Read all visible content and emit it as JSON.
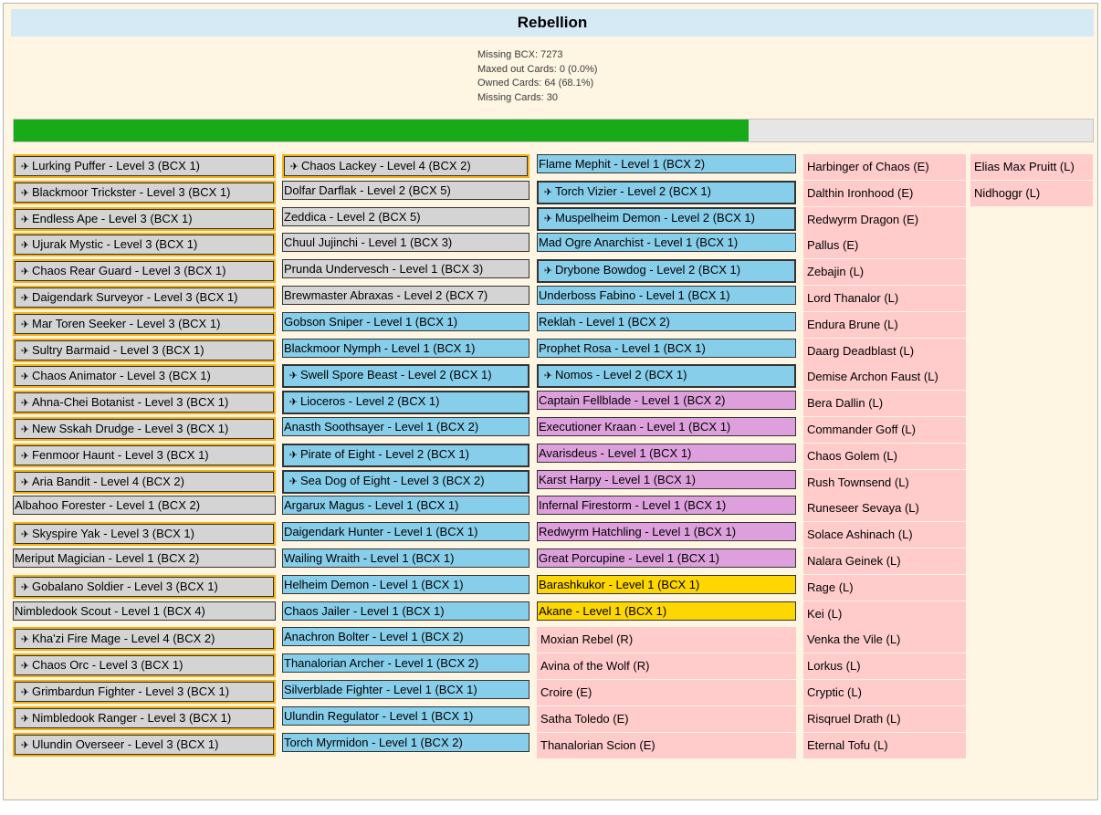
{
  "title": "Rebellion",
  "stats": [
    "Missing BCX: 7273",
    "Maxed out Cards: 0 (0.0%)",
    "Owned Cards: 64 (68.1%)",
    "Missing Cards: 30"
  ],
  "progress_fraction": 0.681,
  "icons": {
    "gold_foil": "gold-card-icon"
  },
  "colors": {
    "gray": "#d4d4d4",
    "blue": "#87ceeb",
    "violet": "#dda0dd",
    "yellow": "#ffd700",
    "pink": "#ffcbcb",
    "gold_border": "#f3b117",
    "progress": "#18aa18"
  },
  "columns": [
    [
      {
        "label": "Lurking Puffer - Level 3 (BCX 1)",
        "style": "gray",
        "gold": true
      },
      {
        "label": "Blackmoor Trickster - Level 3 (BCX 1)",
        "style": "gray",
        "gold": true
      },
      {
        "label": "Endless Ape - Level 3 (BCX 1)",
        "style": "gray",
        "gold": true
      },
      {
        "label": "Ujurak Mystic - Level 3 (BCX 1)",
        "style": "gray",
        "gold": true
      },
      {
        "label": "Chaos Rear Guard - Level 3 (BCX 1)",
        "style": "gray",
        "gold": true
      },
      {
        "label": "Daigendark Surveyor - Level 3 (BCX 1)",
        "style": "gray",
        "gold": true
      },
      {
        "label": "Mar Toren Seeker - Level 3 (BCX 1)",
        "style": "gray",
        "gold": true
      },
      {
        "label": "Sultry Barmaid - Level 3 (BCX 1)",
        "style": "gray",
        "gold": true
      },
      {
        "label": "Chaos Animator - Level 3 (BCX 1)",
        "style": "gray",
        "gold": true
      },
      {
        "label": "Ahna-Chei Botanist - Level 3 (BCX 1)",
        "style": "gray",
        "gold": true
      },
      {
        "label": "New Sskah Drudge - Level 3 (BCX 1)",
        "style": "gray",
        "gold": true
      },
      {
        "label": "Fenmoor Haunt - Level 3 (BCX 1)",
        "style": "gray",
        "gold": true
      },
      {
        "label": "Aria Bandit - Level 4 (BCX 2)",
        "style": "gray",
        "gold": true
      },
      {
        "label": "Albahoo Forester - Level 1 (BCX 2)",
        "style": "gray",
        "gold": false
      },
      {
        "label": "Skyspire Yak - Level 3 (BCX 1)",
        "style": "gray",
        "gold": true
      },
      {
        "label": "Meriput Magician - Level 1 (BCX 2)",
        "style": "gray",
        "gold": false
      },
      {
        "label": "Gobalano Soldier - Level 3 (BCX 1)",
        "style": "gray",
        "gold": true
      },
      {
        "label": "Nimbledook Scout - Level 1 (BCX 4)",
        "style": "gray",
        "gold": false
      },
      {
        "label": "Kha'zi Fire Mage - Level 4 (BCX 2)",
        "style": "gray",
        "gold": true
      },
      {
        "label": "Chaos Orc - Level 3 (BCX 1)",
        "style": "gray",
        "gold": true
      },
      {
        "label": "Grimbardun Fighter - Level 3 (BCX 1)",
        "style": "gray",
        "gold": true
      },
      {
        "label": "Nimbledook Ranger - Level 3 (BCX 1)",
        "style": "gray",
        "gold": true
      },
      {
        "label": "Ulundin Overseer - Level 3 (BCX 1)",
        "style": "gray",
        "gold": true
      }
    ],
    [
      {
        "label": "Chaos Lackey - Level 4 (BCX 2)",
        "style": "gray",
        "gold": true
      },
      {
        "label": "Dolfar Darflak - Level 2 (BCX 5)",
        "style": "gray",
        "gold": false
      },
      {
        "label": "Zeddica - Level 2 (BCX 5)",
        "style": "gray",
        "gold": false
      },
      {
        "label": "Chuul Jujinchi - Level 1 (BCX 3)",
        "style": "gray",
        "gold": false
      },
      {
        "label": "Prunda Undervesch - Level 1 (BCX 3)",
        "style": "gray",
        "gold": false
      },
      {
        "label": "Brewmaster Abraxas - Level 2 (BCX 7)",
        "style": "gray",
        "gold": false
      },
      {
        "label": "Gobson Sniper - Level 1 (BCX 1)",
        "style": "blue",
        "gold": false
      },
      {
        "label": "Blackmoor Nymph - Level 1 (BCX 1)",
        "style": "blue",
        "gold": false
      },
      {
        "label": "Swell Spore Beast - Level 2 (BCX 1)",
        "style": "blue",
        "gold": true
      },
      {
        "label": "Lioceros - Level 2 (BCX 1)",
        "style": "blue",
        "gold": true
      },
      {
        "label": "Anasth Soothsayer - Level 1 (BCX 2)",
        "style": "blue",
        "gold": false
      },
      {
        "label": "Pirate of Eight - Level 2 (BCX 1)",
        "style": "blue",
        "gold": true
      },
      {
        "label": "Sea Dog of Eight - Level 3 (BCX 2)",
        "style": "blue",
        "gold": true
      },
      {
        "label": "Argarux Magus - Level 1 (BCX 1)",
        "style": "blue",
        "gold": false
      },
      {
        "label": "Daigendark Hunter - Level 1 (BCX 1)",
        "style": "blue",
        "gold": false
      },
      {
        "label": "Wailing Wraith - Level 1 (BCX 1)",
        "style": "blue",
        "gold": false
      },
      {
        "label": "Helheim Demon - Level 1 (BCX 1)",
        "style": "blue",
        "gold": false
      },
      {
        "label": "Chaos Jailer - Level 1 (BCX 1)",
        "style": "blue",
        "gold": false
      },
      {
        "label": "Anachron Bolter - Level 1 (BCX 2)",
        "style": "blue",
        "gold": false
      },
      {
        "label": "Thanalorian Archer - Level 1 (BCX 2)",
        "style": "blue",
        "gold": false
      },
      {
        "label": "Silverblade Fighter - Level 1 (BCX 1)",
        "style": "blue",
        "gold": false
      },
      {
        "label": "Ulundin Regulator - Level 1 (BCX 1)",
        "style": "blue",
        "gold": false
      },
      {
        "label": "Torch Myrmidon - Level 1 (BCX 2)",
        "style": "blue",
        "gold": false
      }
    ],
    [
      {
        "label": "Flame Mephit - Level 1 (BCX 2)",
        "style": "blue",
        "gold": false
      },
      {
        "label": "Torch Vizier - Level 2 (BCX 1)",
        "style": "blue",
        "gold": true
      },
      {
        "label": "Muspelheim Demon - Level 2 (BCX 1)",
        "style": "blue",
        "gold": true
      },
      {
        "label": "Mad Ogre Anarchist - Level 1 (BCX 1)",
        "style": "blue",
        "gold": false
      },
      {
        "label": "Drybone Bowdog - Level 2 (BCX 1)",
        "style": "blue",
        "gold": true
      },
      {
        "label": "Underboss Fabino - Level 1 (BCX 1)",
        "style": "blue",
        "gold": false
      },
      {
        "label": "Reklah - Level 1 (BCX 2)",
        "style": "blue",
        "gold": false
      },
      {
        "label": "Prophet Rosa - Level 1 (BCX 1)",
        "style": "blue",
        "gold": false
      },
      {
        "label": "Nomos - Level 2 (BCX 1)",
        "style": "blue",
        "gold": true
      },
      {
        "label": "Captain Fellblade - Level 1 (BCX 2)",
        "style": "violet",
        "gold": false
      },
      {
        "label": "Executioner Kraan - Level 1 (BCX 1)",
        "style": "violet",
        "gold": false
      },
      {
        "label": "Avarisdeus - Level 1 (BCX 1)",
        "style": "violet",
        "gold": false
      },
      {
        "label": "Karst Harpy - Level 1 (BCX 1)",
        "style": "violet",
        "gold": false
      },
      {
        "label": "Infernal Firestorm - Level 1 (BCX 1)",
        "style": "violet",
        "gold": false
      },
      {
        "label": "Redwyrm Hatchling - Level 1 (BCX 1)",
        "style": "violet",
        "gold": false
      },
      {
        "label": "Great Porcupine - Level 1 (BCX 1)",
        "style": "violet",
        "gold": false
      },
      {
        "label": "Barashkukor - Level 1 (BCX 1)",
        "style": "yellow",
        "gold": false
      },
      {
        "label": "Akane - Level 1 (BCX 1)",
        "style": "yellow",
        "gold": false
      },
      {
        "label": "Moxian Rebel (R)",
        "style": "pink",
        "gold": false
      },
      {
        "label": "Avina of the Wolf (R)",
        "style": "pink",
        "gold": false
      },
      {
        "label": "Croire (E)",
        "style": "pink",
        "gold": false
      },
      {
        "label": "Satha Toledo (E)",
        "style": "pink",
        "gold": false
      },
      {
        "label": "Thanalorian Scion (E)",
        "style": "pink",
        "gold": false
      }
    ],
    [
      {
        "label": "Harbinger of Chaos (E)",
        "style": "pink",
        "gold": false
      },
      {
        "label": "Dalthin Ironhood (E)",
        "style": "pink",
        "gold": false
      },
      {
        "label": "Redwyrm Dragon (E)",
        "style": "pink",
        "gold": false
      },
      {
        "label": "Pallus (E)",
        "style": "pink",
        "gold": false
      },
      {
        "label": "Zebajin (L)",
        "style": "pink",
        "gold": false
      },
      {
        "label": "Lord Thanalor (L)",
        "style": "pink",
        "gold": false
      },
      {
        "label": "Endura Brune (L)",
        "style": "pink",
        "gold": false
      },
      {
        "label": "Daarg Deadblast (L)",
        "style": "pink",
        "gold": false
      },
      {
        "label": "Demise Archon Faust (L)",
        "style": "pink",
        "gold": false
      },
      {
        "label": "Bera Dallin (L)",
        "style": "pink",
        "gold": false
      },
      {
        "label": "Commander Goff (L)",
        "style": "pink",
        "gold": false
      },
      {
        "label": "Chaos Golem (L)",
        "style": "pink",
        "gold": false
      },
      {
        "label": "Rush Townsend (L)",
        "style": "pink",
        "gold": false
      },
      {
        "label": "Runeseer Sevaya (L)",
        "style": "pink",
        "gold": false
      },
      {
        "label": "Solace Ashinach (L)",
        "style": "pink",
        "gold": false
      },
      {
        "label": "Nalara Geinek (L)",
        "style": "pink",
        "gold": false
      },
      {
        "label": "Rage (L)",
        "style": "pink",
        "gold": false
      },
      {
        "label": "Kei (L)",
        "style": "pink",
        "gold": false
      },
      {
        "label": "Venka the Vile (L)",
        "style": "pink",
        "gold": false
      },
      {
        "label": "Lorkus (L)",
        "style": "pink",
        "gold": false
      },
      {
        "label": "Cryptic (L)",
        "style": "pink",
        "gold": false
      },
      {
        "label": "Risqruel Drath (L)",
        "style": "pink",
        "gold": false
      },
      {
        "label": "Eternal Tofu (L)",
        "style": "pink",
        "gold": false
      }
    ],
    [
      {
        "label": "Elias Max Pruitt (L)",
        "style": "pink",
        "gold": false
      },
      {
        "label": "Nidhoggr (L)",
        "style": "pink",
        "gold": false
      }
    ]
  ]
}
